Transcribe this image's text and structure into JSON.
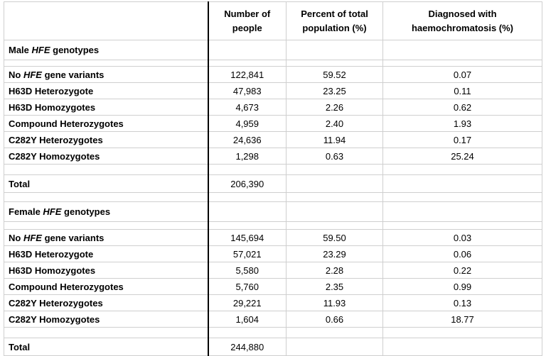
{
  "table": {
    "headers": [
      [
        "Number of",
        "people"
      ],
      [
        "Percent of total",
        "population (%)"
      ],
      [
        "Diagnosed with",
        "haemochromatosis (%)"
      ]
    ],
    "sections": [
      {
        "title": [
          "Male ",
          "HFE",
          " genotypes"
        ],
        "rows": [
          {
            "label": [
              "No ",
              "HFE",
              " gene variants"
            ],
            "cells": [
              "122,841",
              "59.52",
              "0.07"
            ]
          },
          {
            "label": "H63D Heterozygote",
            "cells": [
              "47,983",
              "23.25",
              "0.11"
            ]
          },
          {
            "label": "H63D Homozygotes",
            "cells": [
              "4,673",
              "2.26",
              "0.62"
            ]
          },
          {
            "label": "Compound Heterozygotes",
            "cells": [
              "4,959",
              "2.40",
              "1.93"
            ]
          },
          {
            "label": "C282Y Heterozygotes",
            "cells": [
              "24,636",
              "11.94",
              "0.17"
            ]
          },
          {
            "label": "C282Y Homozygotes",
            "cells": [
              "1,298",
              "0.63",
              "25.24"
            ]
          }
        ],
        "total": {
          "label": "Total",
          "value": "206,390"
        }
      },
      {
        "title": [
          "Female ",
          "HFE",
          " genotypes"
        ],
        "rows": [
          {
            "label": [
              "No ",
              "HFE",
              " gene variants"
            ],
            "cells": [
              "145,694",
              "59.50",
              "0.03"
            ]
          },
          {
            "label": "H63D Heterozygote",
            "cells": [
              "57,021",
              "23.29",
              "0.06"
            ]
          },
          {
            "label": "H63D Homozygotes",
            "cells": [
              "5,580",
              "2.28",
              "0.22"
            ]
          },
          {
            "label": "Compound Heterozygotes",
            "cells": [
              "5,760",
              "2.35",
              "0.99"
            ]
          },
          {
            "label": "C282Y Heterozygotes",
            "cells": [
              "29,221",
              "11.93",
              "0.13"
            ]
          },
          {
            "label": "C282Y Homozygotes",
            "cells": [
              "1,604",
              "0.66",
              "18.77"
            ]
          }
        ],
        "total": {
          "label": "Total",
          "value": "244,880"
        }
      }
    ]
  }
}
